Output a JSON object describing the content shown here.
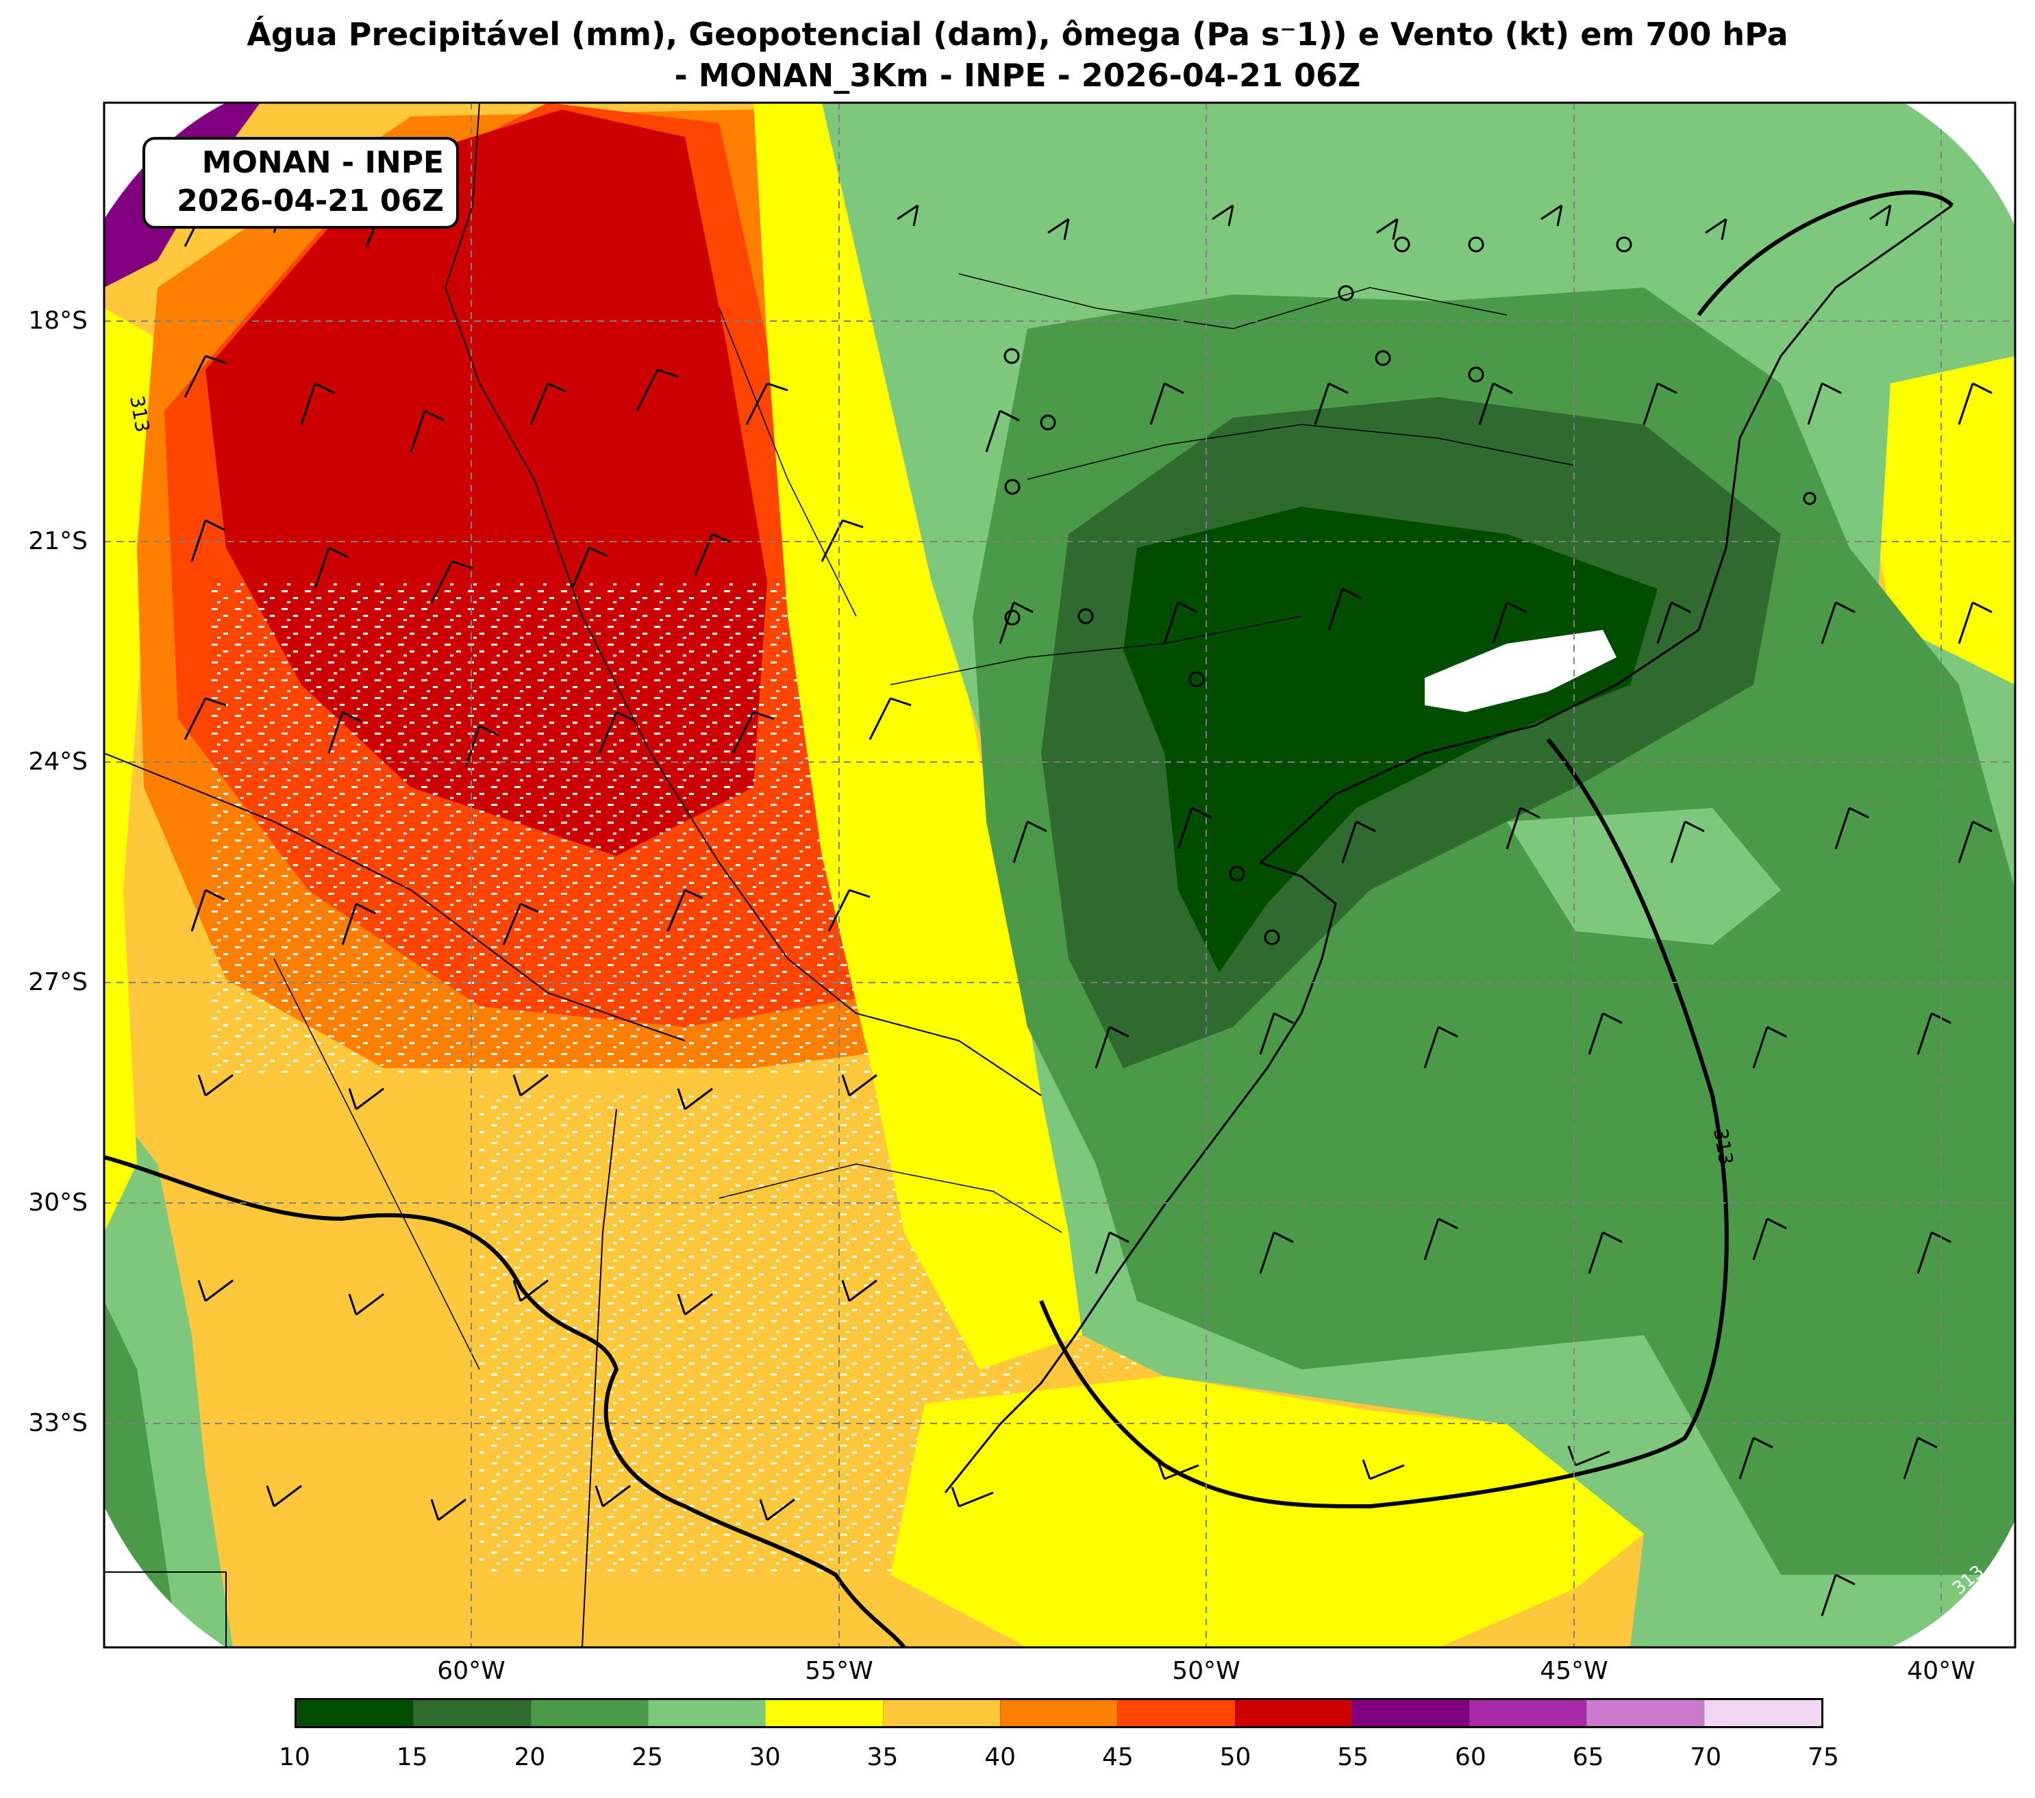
{
  "title": {
    "line1": "Água Precipitável (mm), Geopotencial (dam), ômega (Pa s⁻1)) e Vento (kt) em 700 hPa",
    "line2": "- MONAN_3Km - INPE - 2026-04-21 06Z"
  },
  "stamp": {
    "line1": "MONAN - INPE",
    "line2": "2026-04-21 06Z"
  },
  "axes": {
    "lat_labels": [
      "18°S",
      "21°S",
      "24°S",
      "27°S",
      "30°S",
      "33°S"
    ],
    "lon_labels": [
      "60°W",
      "55°W",
      "50°W",
      "45°W",
      "40°W"
    ]
  },
  "contour_labels": [
    "313",
    "313",
    "313"
  ],
  "colorbar": {
    "ticks": [
      "10",
      "15",
      "20",
      "25",
      "30",
      "35",
      "40",
      "45",
      "50",
      "55",
      "60",
      "65",
      "70",
      "75"
    ],
    "colors": [
      "#004d00",
      "#2f6a2f",
      "#4a9a4a",
      "#7ec87e",
      "#ffff00",
      "#ffc83c",
      "#ff7f00",
      "#ff4500",
      "#cd0000",
      "#800080",
      "#a82aa8",
      "#cc7acc",
      "#f0d6f0"
    ]
  }
}
